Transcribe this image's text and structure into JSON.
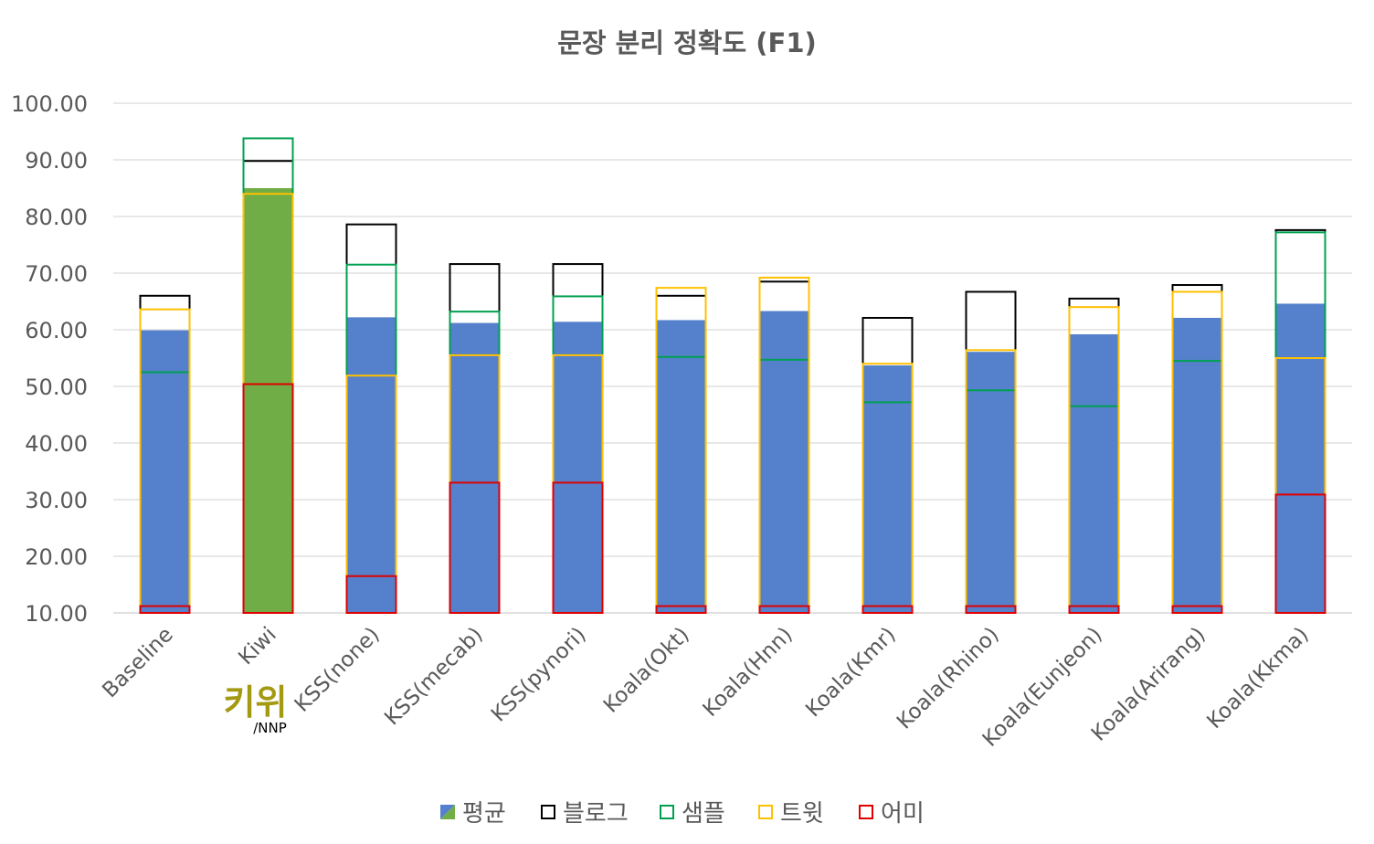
{
  "chart_data": {
    "type": "bar",
    "title": "문장 분리 정확도 (F1)",
    "xlabel": "",
    "ylabel": "",
    "ylim": [
      10,
      100
    ],
    "yticks": [
      "10.00",
      "20.00",
      "30.00",
      "40.00",
      "50.00",
      "60.00",
      "70.00",
      "80.00",
      "90.00",
      "100.00"
    ],
    "grid": true,
    "legend_position": "bottom",
    "categories": [
      "Baseline",
      "Kiwi",
      "KSS(none)",
      "KSS(mecab)",
      "KSS(pynori)",
      "Koala(Okt)",
      "Koala(Hnn)",
      "Koala(Kmr)",
      "Koala(Rhino)",
      "Koala(Eunjeon)",
      "Koala(Arirang)",
      "Koala(Kkma)"
    ],
    "highlight_category": "Kiwi",
    "logo": {
      "text": "키위",
      "subtext": "/NNP",
      "color": "#a39a12"
    },
    "series": [
      {
        "name": "평균",
        "style": "filled",
        "color": "#5580cc",
        "highlight_color": "#70ad47",
        "values": [
          59.9,
          85.0,
          62.2,
          61.2,
          61.4,
          61.7,
          63.3,
          53.7,
          56.1,
          59.2,
          62.1,
          64.6
        ]
      },
      {
        "name": "블로그",
        "style": "outline",
        "color": "#000000",
        "values": [
          66.0,
          89.8,
          78.6,
          71.6,
          71.6,
          66.0,
          68.5,
          62.1,
          66.7,
          65.5,
          67.9,
          77.6
        ]
      },
      {
        "name": "샘플",
        "style": "outline",
        "color": "#00a050",
        "values": [
          52.5,
          93.8,
          71.5,
          63.2,
          65.9,
          55.2,
          54.7,
          47.2,
          49.3,
          46.5,
          54.5,
          77.2
        ]
      },
      {
        "name": "트윗",
        "style": "outline",
        "color": "#ffc000",
        "values": [
          63.6,
          84.0,
          51.9,
          55.5,
          55.5,
          67.4,
          69.2,
          54.0,
          56.4,
          64.0,
          66.7,
          55.0
        ]
      },
      {
        "name": "어미",
        "style": "outline",
        "color": "#e00000",
        "values": [
          11.2,
          50.4,
          16.5,
          33.0,
          33.0,
          11.2,
          11.2,
          11.2,
          11.2,
          11.2,
          11.2,
          30.9
        ]
      }
    ]
  }
}
